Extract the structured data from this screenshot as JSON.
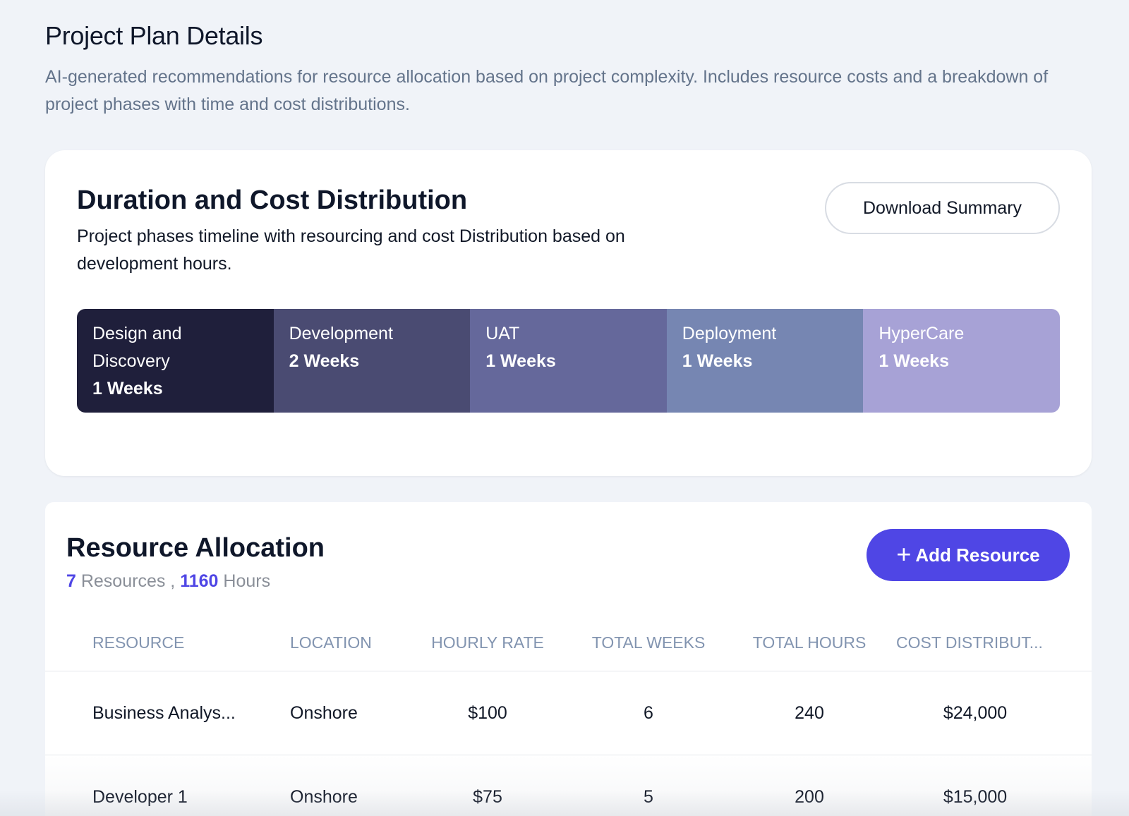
{
  "page": {
    "title": "Project Plan Details",
    "description": "AI-generated recommendations for resource allocation based on project complexity. Includes resource costs and a breakdown of project phases with time and cost distributions."
  },
  "duration_card": {
    "title": "Duration and Cost Distribution",
    "description": "Project phases timeline with resourcing and cost Distribution based on development hours.",
    "download_label": "Download Summary",
    "phases": [
      {
        "name": "Design and Discovery",
        "duration": "1 Weeks",
        "color": "#1f1f3b"
      },
      {
        "name": "Development",
        "duration": "2 Weeks",
        "color": "#4a4b72"
      },
      {
        "name": "UAT",
        "duration": "1 Weeks",
        "color": "#65689b"
      },
      {
        "name": "Deployment",
        "duration": "1 Weeks",
        "color": "#7686b2"
      },
      {
        "name": "HyperCare",
        "duration": "1 Weeks",
        "color": "#a7a2d6"
      }
    ]
  },
  "resources_card": {
    "title": "Resource Allocation",
    "resource_count": "7",
    "resources_word": " Resources , ",
    "hours_count": "1160",
    "hours_word": " Hours",
    "add_label": "Add Resource",
    "add_icon": "plus-icon",
    "accent_color": "#4f46e5",
    "columns": [
      "RESOURCE",
      "LOCATION",
      "HOURLY RATE",
      "TOTAL WEEKS",
      "TOTAL HOURS",
      "COST DISTRIBUT..."
    ],
    "rows": [
      {
        "resource": "Business Analys...",
        "location": "Onshore",
        "rate": "$100",
        "weeks": "6",
        "hours": "240",
        "cost": "$24,000"
      },
      {
        "resource": "Developer 1",
        "location": "Onshore",
        "rate": "$75",
        "weeks": "5",
        "hours": "200",
        "cost": "$15,000"
      }
    ]
  }
}
